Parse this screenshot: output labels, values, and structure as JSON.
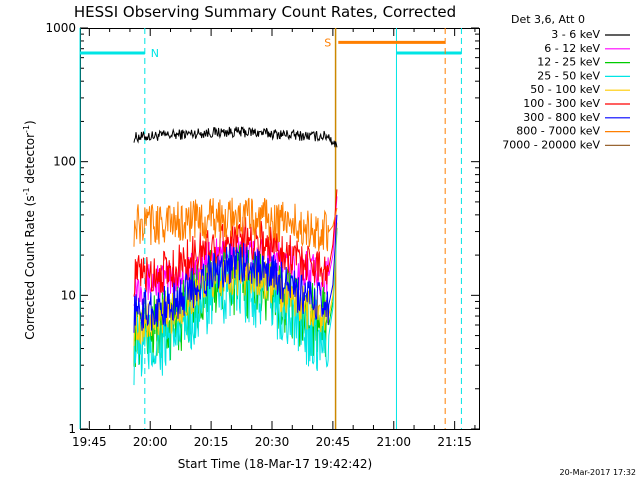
{
  "chart_data": {
    "type": "line",
    "title": "HESSI Observing Summary Count Rates, Corrected",
    "xlabel": "Start Time (18-Mar-17 19:42:42)",
    "ylabel_prefix": "Corrected Count Rate (s",
    "ylabel_sup1": "-1",
    "ylabel_mid": " detector",
    "ylabel_sup2": "-1",
    "ylabel_suffix": ")",
    "y_scale": "log",
    "ylim": [
      1,
      1000
    ],
    "xlim": [
      "19:42:42",
      "21:21:00"
    ],
    "x_ticks": [
      "19:45",
      "20:00",
      "20:15",
      "20:30",
      "20:45",
      "21:00",
      "21:15"
    ],
    "y_ticks": [
      "1",
      "10",
      "100",
      "1000"
    ],
    "legend_header": "Det 3,6, Att 0",
    "legend_placement": "outside-right",
    "timestamp": "20-Mar-2017 17:32",
    "series": [
      {
        "name": "3 - 6 keV",
        "color": "#000000",
        "points": [
          [
            "19:56",
            152
          ],
          [
            "20:00",
            155
          ],
          [
            "20:05",
            158
          ],
          [
            "20:10",
            162
          ],
          [
            "20:15",
            165
          ],
          [
            "20:20",
            167
          ],
          [
            "20:25",
            166
          ],
          [
            "20:30",
            162
          ],
          [
            "20:35",
            158
          ],
          [
            "20:40",
            155
          ],
          [
            "20:44",
            156
          ],
          [
            "20:46",
            128
          ]
        ]
      },
      {
        "name": "6 - 12 keV",
        "color": "#ff00ff",
        "points": [
          [
            "19:56",
            12
          ],
          [
            "20:00",
            12.5
          ],
          [
            "20:05",
            13
          ],
          [
            "20:10",
            15
          ],
          [
            "20:15",
            18
          ],
          [
            "20:20",
            20
          ],
          [
            "20:25",
            20
          ],
          [
            "20:30",
            18.5
          ],
          [
            "20:35",
            16
          ],
          [
            "20:40",
            14.5
          ],
          [
            "20:44",
            14
          ],
          [
            "20:45",
            20
          ],
          [
            "20:46",
            55
          ]
        ]
      },
      {
        "name": "12 - 25 keV",
        "color": "#00cc00",
        "points": [
          [
            "19:56",
            5.5
          ],
          [
            "20:00",
            5.6
          ],
          [
            "20:05",
            6
          ],
          [
            "20:10",
            8.5
          ],
          [
            "20:15",
            12
          ],
          [
            "20:20",
            13
          ],
          [
            "20:25",
            12.5
          ],
          [
            "20:30",
            10.5
          ],
          [
            "20:35",
            8
          ],
          [
            "20:40",
            6.5
          ],
          [
            "20:44",
            6
          ],
          [
            "20:45",
            9
          ],
          [
            "20:46",
            32
          ]
        ]
      },
      {
        "name": "25 - 50 keV",
        "color": "#00e5e5",
        "points": [
          [
            "19:56",
            4
          ],
          [
            "20:00",
            4.2
          ],
          [
            "20:05",
            4.6
          ],
          [
            "20:10",
            7
          ],
          [
            "20:15",
            10
          ],
          [
            "20:20",
            11.5
          ],
          [
            "20:25",
            11
          ],
          [
            "20:30",
            9
          ],
          [
            "20:35",
            6.5
          ],
          [
            "20:40",
            5.2
          ],
          [
            "20:44",
            5
          ],
          [
            "20:45",
            8
          ],
          [
            "20:46",
            30
          ]
        ]
      },
      {
        "name": "50 - 100 keV",
        "color": "#ffcc00",
        "points": [
          [
            "19:56",
            6
          ],
          [
            "20:00",
            6.3
          ],
          [
            "20:05",
            7
          ],
          [
            "20:10",
            9.5
          ],
          [
            "20:15",
            13
          ],
          [
            "20:20",
            14.5
          ],
          [
            "20:25",
            14
          ],
          [
            "20:30",
            12
          ],
          [
            "20:35",
            9.5
          ],
          [
            "20:40",
            7.5
          ],
          [
            "20:44",
            7
          ],
          [
            "20:45",
            10
          ],
          [
            "20:46",
            35
          ]
        ]
      },
      {
        "name": "100 - 300 keV",
        "color": "#ff0000",
        "points": [
          [
            "19:56",
            14
          ],
          [
            "20:00",
            14.5
          ],
          [
            "20:05",
            15.5
          ],
          [
            "20:10",
            19
          ],
          [
            "20:15",
            24
          ],
          [
            "20:20",
            27
          ],
          [
            "20:25",
            27
          ],
          [
            "20:30",
            24
          ],
          [
            "20:35",
            20
          ],
          [
            "20:40",
            17
          ],
          [
            "20:44",
            16
          ],
          [
            "20:45",
            24
          ],
          [
            "20:46",
            62
          ]
        ]
      },
      {
        "name": "300 - 800 keV",
        "color": "#0000ff",
        "points": [
          [
            "19:56",
            7.5
          ],
          [
            "20:00",
            7.8
          ],
          [
            "20:05",
            8.3
          ],
          [
            "20:10",
            11
          ],
          [
            "20:15",
            15
          ],
          [
            "20:20",
            17.5
          ],
          [
            "20:25",
            17
          ],
          [
            "20:30",
            14.5
          ],
          [
            "20:35",
            11
          ],
          [
            "20:40",
            9
          ],
          [
            "20:44",
            8.5
          ],
          [
            "20:45",
            12
          ],
          [
            "20:46",
            40
          ]
        ]
      },
      {
        "name": "800 - 7000 keV",
        "color": "#ff7f00",
        "points": [
          [
            "19:56",
            33
          ],
          [
            "20:00",
            34
          ],
          [
            "20:05",
            35
          ],
          [
            "20:10",
            36
          ],
          [
            "20:15",
            37
          ],
          [
            "20:20",
            38
          ],
          [
            "20:25",
            38
          ],
          [
            "20:30",
            36.5
          ],
          [
            "20:35",
            34
          ],
          [
            "20:40",
            31
          ],
          [
            "20:44",
            30
          ],
          [
            "20:45",
            33
          ],
          [
            "20:46",
            45
          ]
        ]
      },
      {
        "name": "7000 - 20000 keV",
        "color": "#996633",
        "points": []
      }
    ],
    "markers": {
      "night": [
        [
          "19:42:42",
          "19:58:40"
        ],
        [
          "21:00:40",
          "21:16:40"
        ]
      ],
      "night_label": "N",
      "night_color": "#00e5e5",
      "night_level": 650,
      "saa": [
        [
          "20:46:20",
          "21:12:40"
        ]
      ],
      "saa_label": "S",
      "saa_color": "#ff7f00",
      "saa_level": 780,
      "flare_line": "20:45:40",
      "flare_color": "#cc8800"
    }
  }
}
